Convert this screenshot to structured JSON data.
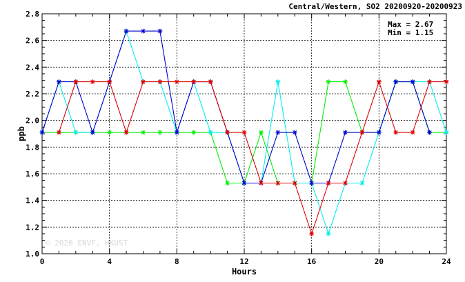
{
  "chart_data": {
    "type": "line",
    "title": "Central/Western, SO2 20200920-20200923",
    "xlabel": "Hours",
    "ylabel": "ppb",
    "xlim": [
      0,
      24
    ],
    "ylim": [
      1.0,
      2.8
    ],
    "x_ticks": [
      "0",
      "4",
      "8",
      "12",
      "16",
      "20",
      "24"
    ],
    "y_ticks": [
      "1.0",
      "1.2",
      "1.4",
      "1.6",
      "1.8",
      "2.0",
      "2.2",
      "2.4",
      "2.6",
      "2.8"
    ],
    "grid": true,
    "stats": {
      "max_label": "Max = 2.67",
      "min_label": "Min = 1.15"
    },
    "watermark": "© 2026 ENVF, HKUST",
    "x": [
      0,
      1,
      2,
      3,
      4,
      5,
      6,
      7,
      8,
      9,
      10,
      11,
      12,
      13,
      14,
      15,
      16,
      17,
      18,
      19,
      20,
      21,
      22,
      23,
      24
    ],
    "series": [
      {
        "color": "#00ee00",
        "values": [
          1.91,
          1.91,
          1.91,
          1.91,
          1.91,
          1.91,
          1.91,
          1.91,
          1.91,
          1.91,
          1.91,
          1.53,
          1.53,
          1.91,
          1.53,
          1.53,
          1.53,
          2.29,
          2.29,
          1.91,
          1.91,
          2.29,
          2.29,
          1.91,
          1.91
        ]
      },
      {
        "color": "#00eeee",
        "values": [
          1.91,
          2.29,
          1.91,
          1.91,
          2.29,
          2.67,
          2.29,
          2.29,
          1.91,
          2.29,
          1.91,
          1.91,
          1.53,
          1.53,
          2.29,
          1.53,
          1.53,
          1.15,
          1.53,
          1.53,
          1.91,
          2.29,
          2.29,
          2.29,
          1.91
        ]
      },
      {
        "color": "#0000cc",
        "values": [
          1.91,
          2.29,
          2.29,
          1.91,
          2.29,
          2.67,
          2.67,
          2.67,
          1.91,
          2.29,
          2.29,
          1.91,
          1.53,
          1.53,
          1.91,
          1.91,
          1.53,
          1.53,
          1.91,
          1.91,
          1.91,
          2.29,
          2.29,
          1.91,
          null
        ]
      },
      {
        "color": "#dd0000",
        "values": [
          null,
          1.91,
          2.29,
          2.29,
          2.29,
          1.91,
          2.29,
          2.29,
          2.29,
          2.29,
          2.29,
          1.91,
          1.91,
          1.53,
          1.53,
          1.53,
          1.15,
          1.53,
          1.53,
          1.91,
          2.29,
          1.91,
          1.91,
          2.29,
          2.29
        ]
      }
    ]
  }
}
